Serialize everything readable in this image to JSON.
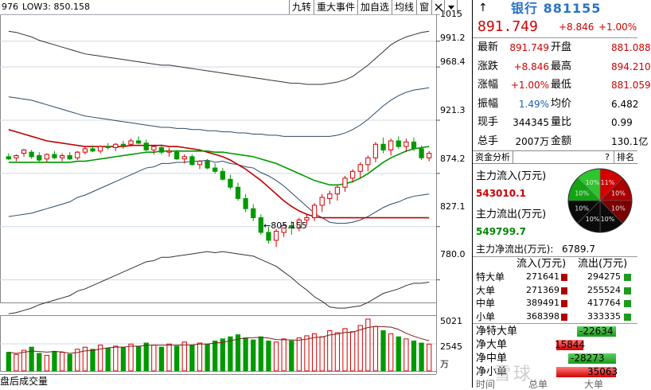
{
  "chart": {
    "header_code": "976",
    "header_low": "LOW3: 850.158",
    "toolbar": [
      "九转",
      "重大事件",
      "加自选",
      "均线",
      "窗"
    ],
    "toolbar_icons": [
      "close-icon",
      "dropdown-arrow-icon"
    ],
    "y_labels": [
      "1015",
      "991.2",
      "968.4",
      "921.3",
      "874.2",
      "827.1",
      "780.0"
    ],
    "low_marker": "←805.155",
    "vol_labels": [
      "5021",
      "2545"
    ],
    "vol_unit": "万",
    "vol_caption": "盘后成交量",
    "colors": {
      "up": "#d40000",
      "down": "#009a00",
      "ma_red": "#c00000",
      "ma_green": "#009900",
      "band": "#333333",
      "grid": "#cfd8e6"
    }
  },
  "chart_data": {
    "type": "candlestick",
    "ylim": [
      760,
      1015
    ],
    "bands": {
      "outer_upper": [
        1000,
        999,
        997,
        995,
        992,
        990,
        988,
        986,
        984,
        982,
        980,
        979,
        978,
        977,
        976,
        975,
        974,
        973,
        972,
        971,
        970,
        970,
        969,
        968,
        967,
        966,
        965,
        964,
        963,
        962,
        961,
        960,
        959,
        958,
        957,
        956,
        955,
        954,
        954,
        953,
        953,
        953,
        954,
        955,
        957,
        960,
        965,
        970,
        976,
        982,
        988,
        992,
        995,
        997,
        999,
        1000
      ],
      "inner_upper": [
        942,
        941,
        940,
        939,
        937,
        935,
        933,
        931,
        929,
        927,
        925,
        924,
        923,
        922,
        921,
        920,
        919,
        918,
        917,
        916,
        915,
        915,
        914,
        914,
        913,
        913,
        912,
        912,
        911,
        911,
        910,
        910,
        909,
        909,
        908,
        908,
        907,
        907,
        907,
        907,
        907,
        907,
        907,
        908,
        910,
        913,
        917,
        922,
        928,
        934,
        939,
        943,
        946,
        948,
        949,
        950
      ]
    },
    "ma_red": [
      913,
      911,
      909,
      907,
      905,
      903,
      902,
      901,
      900,
      899,
      898,
      898,
      898,
      898,
      898,
      898,
      899,
      899,
      899,
      899,
      899,
      898,
      898,
      897,
      896,
      895,
      893,
      891,
      889,
      886,
      882,
      878,
      873,
      868,
      862,
      856,
      850,
      845,
      841,
      838,
      836,
      835,
      835,
      835,
      835,
      835,
      835,
      835,
      835,
      835,
      835,
      835,
      835,
      835,
      835,
      835
    ],
    "ma_green": [
      884,
      884,
      884,
      884,
      884,
      884,
      884,
      884,
      884,
      885,
      885,
      886,
      887,
      888,
      889,
      890,
      891,
      892,
      893,
      893,
      894,
      894,
      894,
      894,
      894,
      894,
      894,
      893,
      893,
      892,
      891,
      890,
      889,
      887,
      885,
      883,
      880,
      877,
      874,
      871,
      868,
      866,
      864,
      864,
      865,
      867,
      870,
      874,
      879,
      884,
      888,
      891,
      894,
      896,
      897,
      898
    ],
    "candles": [
      [
        889,
        892,
        886,
        887
      ],
      [
        888,
        891,
        885,
        890
      ],
      [
        892,
        896,
        889,
        895
      ],
      [
        893,
        895,
        887,
        889
      ],
      [
        890,
        893,
        884,
        886
      ],
      [
        887,
        892,
        884,
        891
      ],
      [
        891,
        894,
        887,
        888
      ],
      [
        888,
        892,
        885,
        890
      ],
      [
        890,
        893,
        886,
        887
      ],
      [
        888,
        894,
        886,
        893
      ],
      [
        893,
        898,
        891,
        896
      ],
      [
        896,
        899,
        893,
        894
      ],
      [
        894,
        899,
        892,
        898
      ],
      [
        898,
        901,
        895,
        897
      ],
      [
        897,
        901,
        894,
        900
      ],
      [
        900,
        903,
        896,
        899
      ],
      [
        900,
        905,
        898,
        903
      ],
      [
        903,
        907,
        900,
        901
      ],
      [
        901,
        904,
        894,
        895
      ],
      [
        895,
        899,
        891,
        898
      ],
      [
        897,
        900,
        891,
        893
      ],
      [
        893,
        897,
        889,
        894
      ],
      [
        893,
        895,
        886,
        887
      ],
      [
        887,
        891,
        883,
        889
      ],
      [
        889,
        891,
        881,
        882
      ],
      [
        882,
        886,
        878,
        885
      ],
      [
        885,
        887,
        878,
        879
      ],
      [
        879,
        883,
        874,
        876
      ],
      [
        876,
        879,
        868,
        869
      ],
      [
        869,
        873,
        860,
        862
      ],
      [
        862,
        866,
        850,
        852
      ],
      [
        852,
        856,
        840,
        843
      ],
      [
        843,
        847,
        832,
        835
      ],
      [
        835,
        838,
        820,
        822
      ],
      [
        822,
        827,
        812,
        815
      ],
      [
        815,
        825,
        809,
        823
      ],
      [
        822,
        830,
        818,
        828
      ],
      [
        828,
        832,
        820,
        826
      ],
      [
        826,
        835,
        823,
        833
      ],
      [
        833,
        838,
        828,
        835
      ],
      [
        835,
        848,
        832,
        846
      ],
      [
        846,
        856,
        840,
        853
      ],
      [
        852,
        859,
        847,
        856
      ],
      [
        856,
        864,
        850,
        862
      ],
      [
        862,
        872,
        858,
        870
      ],
      [
        870,
        878,
        866,
        876
      ],
      [
        876,
        884,
        870,
        882
      ],
      [
        882,
        890,
        876,
        888
      ],
      [
        888,
        902,
        884,
        900
      ],
      [
        900,
        906,
        892,
        895
      ],
      [
        895,
        905,
        890,
        903
      ],
      [
        903,
        907,
        896,
        898
      ],
      [
        898,
        905,
        893,
        902
      ],
      [
        902,
        906,
        894,
        896
      ],
      [
        896,
        899,
        886,
        888
      ],
      [
        888,
        894,
        885,
        892
      ]
    ],
    "volume": [
      1800,
      1600,
      2000,
      2300,
      1700,
      1500,
      1900,
      1800,
      1600,
      2100,
      2300,
      2100,
      2500,
      2200,
      2400,
      2300,
      2600,
      2400,
      2700,
      2500,
      2300,
      2600,
      2400,
      2800,
      2500,
      2700,
      2600,
      2900,
      3100,
      3300,
      3500,
      3200,
      3000,
      3300,
      2900,
      2800,
      3100,
      2900,
      3200,
      3400,
      3600,
      3300,
      3900,
      3700,
      4100,
      3800,
      4400,
      5021,
      4300,
      3900,
      3600,
      3300,
      3100,
      2900,
      2700,
      2600
    ],
    "vol_max": 5400
  },
  "panel": {
    "arrow": "↑",
    "title": "银行 881155",
    "price": "891.749",
    "change": "+8.846",
    "pct": "+1.00%",
    "rows": [
      {
        "l1": "最新",
        "v1": "891.749",
        "c1": "red",
        "l2": "开盘",
        "v2": "881.088",
        "c2": "red"
      },
      {
        "l1": "涨跌",
        "v1": "+8.846",
        "c1": "red",
        "l2": "最高",
        "v2": "894.210",
        "c2": "red"
      },
      {
        "l1": "涨幅",
        "v1": "+1.00%",
        "c1": "red",
        "l2": "最低",
        "v2": "881.059",
        "c2": "red"
      },
      {
        "l1": "振幅",
        "v1": "1.49%",
        "c1": "blue",
        "l2": "均价",
        "v2": "6.482",
        "c2": "black"
      },
      {
        "l1": "现手",
        "v1": "344345",
        "c1": "black",
        "l2": "量比",
        "v2": "0.99",
        "c2": "black"
      },
      {
        "l1": "总手",
        "v1": "2007万",
        "c1": "black",
        "l2": "金额",
        "v2": "130.1亿",
        "c2": "black"
      }
    ],
    "tabs": [
      "资金分析",
      "?",
      "排名"
    ],
    "inflow_label": "主力流入(万元)",
    "inflow_value": "543010.1",
    "outflow_label": "主力流出(万元)",
    "outflow_value": "549799.7",
    "net_label": "主力净流出(万元):",
    "net_value": "6789.7",
    "pie_labels": [
      "11%",
      "10%",
      "10%",
      "10%",
      "10%",
      "10%",
      "10%",
      "10%"
    ],
    "flow_headers": [
      "流入(万元)",
      "流出(万元)"
    ],
    "flow_rows": [
      {
        "name": "特大单",
        "in": "271641",
        "out": "294275"
      },
      {
        "name": "大单",
        "in": "271369",
        "out": "255524"
      },
      {
        "name": "中单",
        "in": "389491",
        "out": "417764"
      },
      {
        "name": "小单",
        "in": "368398",
        "out": "333335"
      }
    ],
    "net_rows": [
      {
        "name": "净特大单",
        "value": "-22634",
        "dir": "neg",
        "frac": 0.65
      },
      {
        "name": "净大单",
        "value": "15844",
        "dir": "pos",
        "frac": 0.45
      },
      {
        "name": "净中单",
        "value": "-28273",
        "dir": "neg",
        "frac": 0.8
      },
      {
        "name": "净小单",
        "value": "35063",
        "dir": "pos",
        "frac": 1.0
      }
    ],
    "bottom": [
      "时间",
      "总单",
      "大单"
    ],
    "watermark": "雪球"
  }
}
